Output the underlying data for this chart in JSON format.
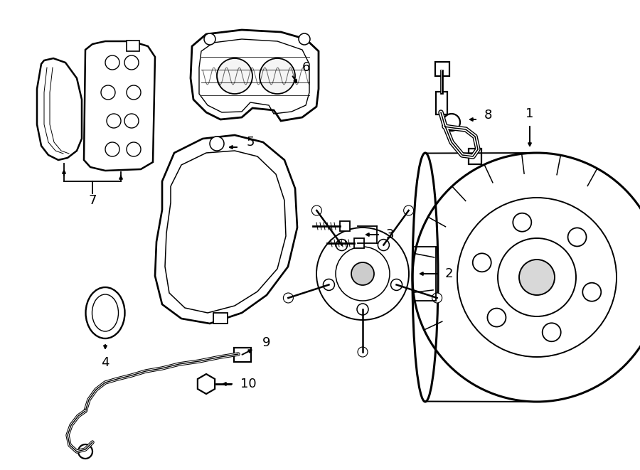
{
  "background_color": "#ffffff",
  "line_color": "#000000",
  "lw": 1.4,
  "tlw": 0.8,
  "figsize": [
    9.0,
    6.61
  ],
  "dpi": 100
}
